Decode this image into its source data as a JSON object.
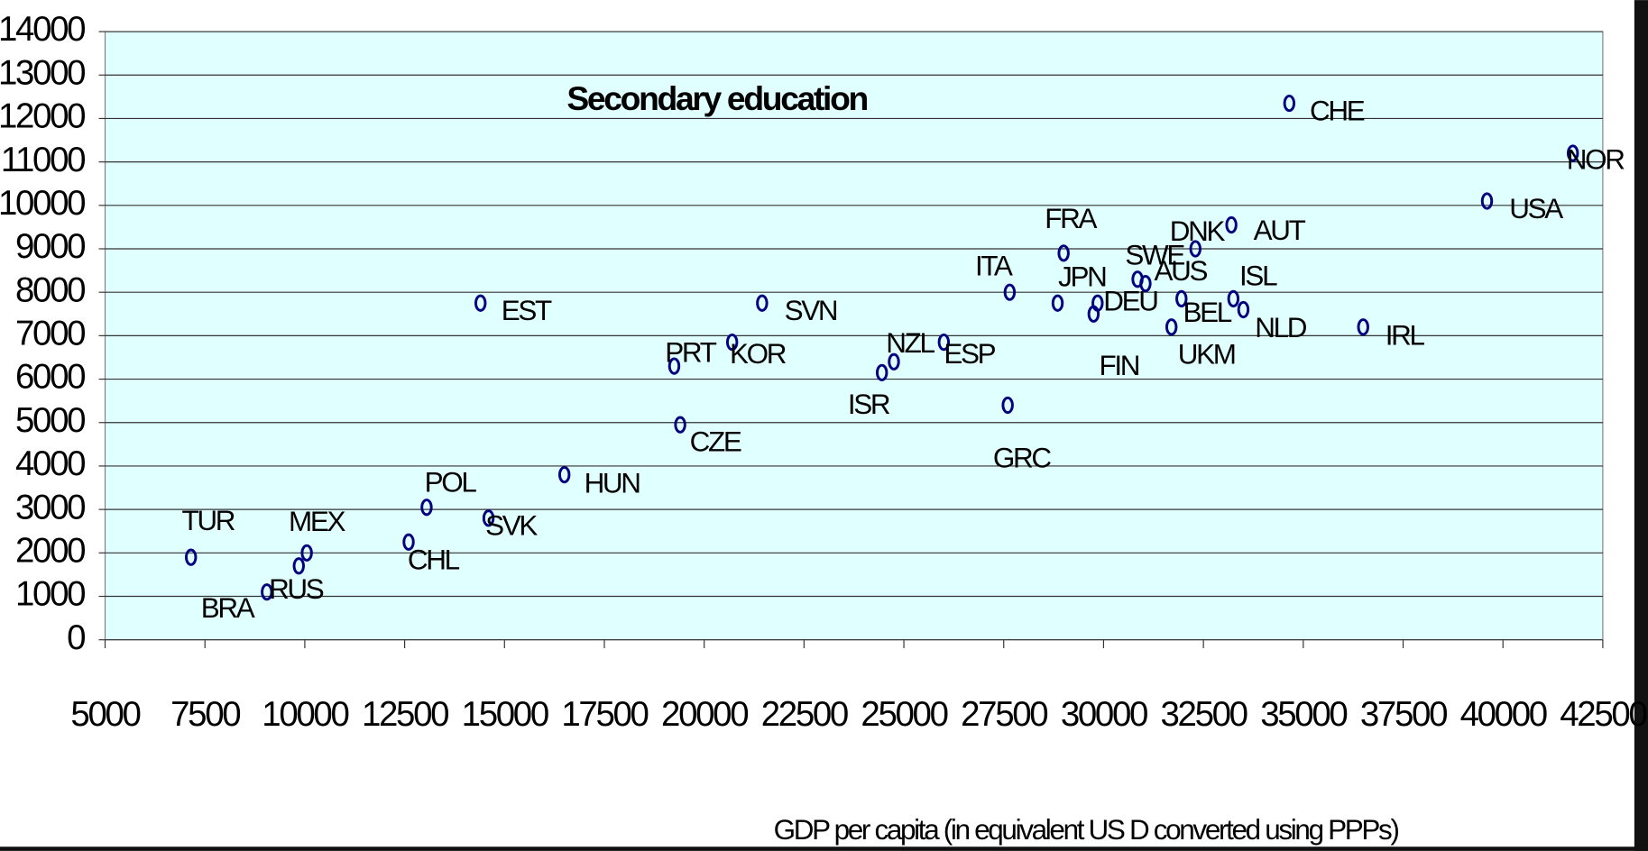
{
  "chart_data": {
    "type": "scatter",
    "title": "Secondary education",
    "x_label": "GDP per capita (in equivalent US D converted using PPPs)",
    "labels": [
      "TUR",
      "BRA",
      "RUS",
      "MEX",
      "CHL",
      "POL",
      "SVK",
      "EST",
      "HUN",
      "PRT",
      "CZE",
      "KOR",
      "SVN",
      "ISR",
      "NZL",
      "ESP",
      "GRC",
      "ITA",
      "FRA",
      "JPN",
      "FIN",
      "DEU",
      "SWE",
      "AUS",
      "DNK",
      "BEL",
      "UKM",
      "AUT",
      "ISL",
      "NLD",
      "IRL",
      "CHE",
      "USA",
      "NOR"
    ],
    "x": [
      7150,
      9050,
      9850,
      10050,
      12600,
      13050,
      14600,
      14400,
      16500,
      19250,
      19400,
      20700,
      21450,
      24450,
      24750,
      26000,
      27600,
      27650,
      29000,
      28850,
      29750,
      29850,
      30850,
      31050,
      32300,
      31950,
      31700,
      33200,
      33250,
      33500,
      36500,
      34650,
      39600,
      41750
    ],
    "y": [
      1900,
      1100,
      1700,
      2000,
      2250,
      3050,
      2800,
      7750,
      3800,
      6300,
      4950,
      6850,
      7750,
      6150,
      6400,
      6850,
      5400,
      8000,
      8900,
      7750,
      7500,
      7750,
      8300,
      8200,
      9000,
      7850,
      7200,
      9550,
      7850,
      7600,
      7200,
      12350,
      10100,
      11200
    ],
    "color": "#000080",
    "xlim": [
      5000,
      42500
    ],
    "ylim": [
      0,
      14000
    ],
    "xticks": [
      5000,
      7500,
      10000,
      12500,
      15000,
      17500,
      20000,
      22500,
      25000,
      27500,
      30000,
      32500,
      35000,
      37500,
      40000,
      42500
    ],
    "yticks": [
      0,
      1000,
      2000,
      3000,
      4000,
      5000,
      6000,
      7000,
      8000,
      9000,
      10000,
      11000,
      12000,
      13000,
      14000
    ],
    "grid": true
  }
}
